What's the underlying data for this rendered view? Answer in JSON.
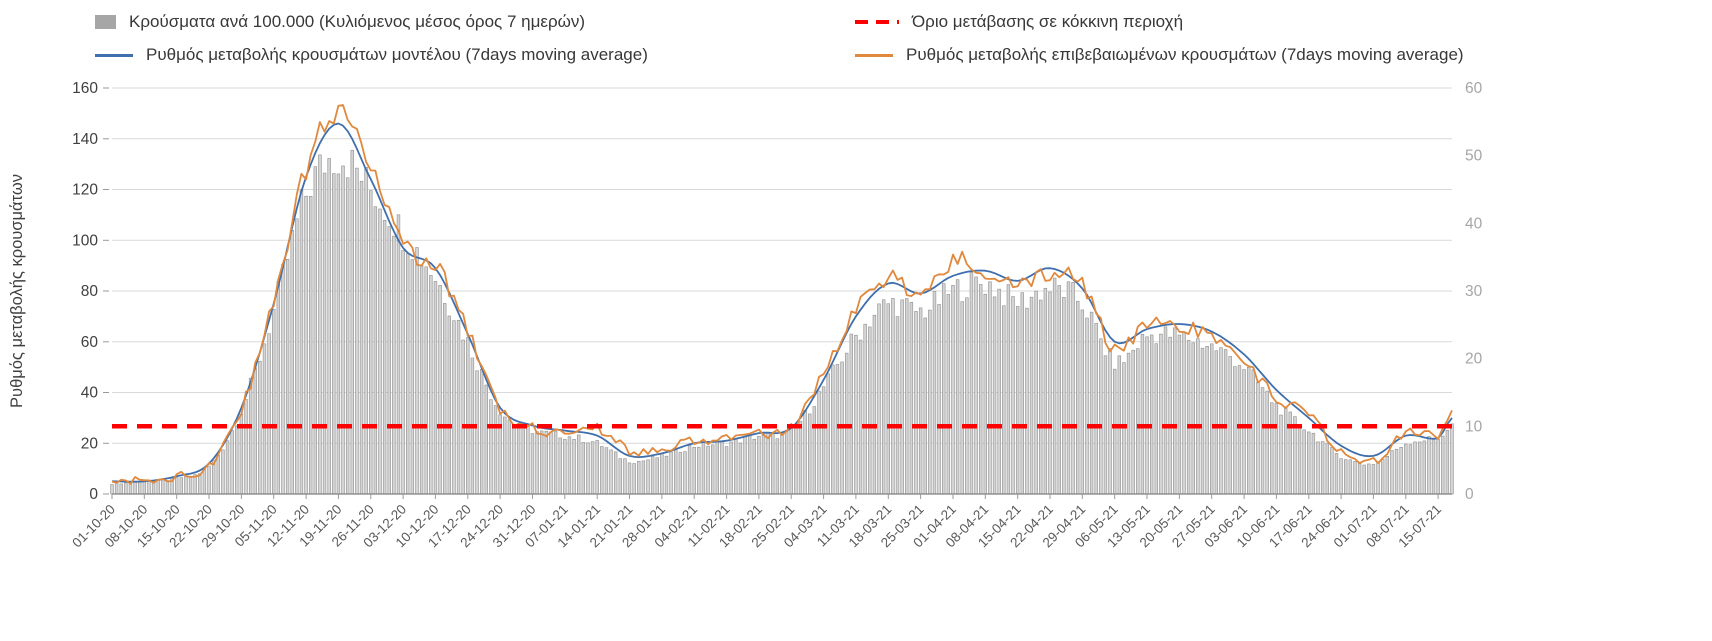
{
  "legend": {
    "items": [
      {
        "label": "Κρούσματα ανά 100.000 (Κυλιόμενος μέσος όρος 7 ημερών)",
        "swatch": "bar",
        "color": "#a6a6a6"
      },
      {
        "label": "Όριο μετάβασης σε κόκκινη περιοχή",
        "swatch": "dash",
        "color": "#ff0000"
      },
      {
        "label": "Ρυθμός μεταβολής κρουσμάτων μοντέλου (7days moving average)",
        "swatch": "line",
        "color": "#3f6fad"
      },
      {
        "label": "Ρυθμός μεταβολής επιβεβαιωμένων κρουσμάτων (7days moving average)",
        "swatch": "line",
        "color": "#e0883c"
      }
    ]
  },
  "chart_data": {
    "type": "bar+line",
    "title": "",
    "ylabel_left": "Ρυθμός μεταβολής κρουσμάτων",
    "axis_left": {
      "min": 0,
      "max": 160,
      "step": 20,
      "tick_labels": [
        "0",
        "20",
        "40",
        "60",
        "80",
        "100",
        "120",
        "140",
        "160"
      ]
    },
    "axis_right": {
      "min": 0,
      "max": 60,
      "step": 10,
      "tick_labels": [
        "0",
        "10",
        "20",
        "30",
        "40",
        "50",
        "60"
      ]
    },
    "grid": "horizontal",
    "legend_position": "top",
    "days_total": 291,
    "x_tick_labels": [
      "01-10-20",
      "08-10-20",
      "15-10-20",
      "22-10-20",
      "29-10-20",
      "05-11-20",
      "12-11-20",
      "19-11-20",
      "26-11-20",
      "03-12-20",
      "10-12-20",
      "17-12-20",
      "24-12-20",
      "31-12-20",
      "07-01-21",
      "14-01-21",
      "21-01-21",
      "28-01-21",
      "04-02-21",
      "11-02-21",
      "18-02-21",
      "25-02-21",
      "04-03-21",
      "11-03-21",
      "18-03-21",
      "25-03-21",
      "01-04-21",
      "08-04-21",
      "15-04-21",
      "22-04-21",
      "29-04-21",
      "06-05-21",
      "13-05-21",
      "20-05-21",
      "27-05-21",
      "03-06-21",
      "10-06-21",
      "17-06-21",
      "24-06-21",
      "01-07-21",
      "08-07-21",
      "15-07-21"
    ],
    "anchor_days": [
      0,
      7,
      14,
      21,
      28,
      35,
      42,
      49,
      56,
      63,
      70,
      77,
      84,
      91,
      98,
      105,
      112,
      119,
      126,
      133,
      140,
      147,
      154,
      161,
      168,
      175,
      182,
      189,
      196,
      203,
      210,
      217,
      224,
      231,
      238,
      245,
      252,
      259,
      266,
      273,
      280,
      287,
      290
    ],
    "series": [
      {
        "name": "Κρούσματα ανά 100.000 (Κυλιόμενος μέσος όρος 7 ημερών)",
        "type": "bar",
        "axis": "right",
        "color": "#d4d4d4",
        "jagged": true,
        "values": [
          1.5,
          1.9,
          2.3,
          4.1,
          12.4,
          27,
          44.3,
          50,
          45,
          38.6,
          32,
          22.5,
          12.4,
          9.4,
          8.6,
          7.5,
          4.9,
          5.6,
          7.1,
          7.5,
          8.6,
          9.4,
          15.8,
          23.3,
          28.1,
          27,
          30,
          31.1,
          28.5,
          30.4,
          28.1,
          19.5,
          23.3,
          23.3,
          21.8,
          18.8,
          13.1,
          9.4,
          5.6,
          4.5,
          7.5,
          8.3,
          10.1
        ]
      },
      {
        "name": "Ρυθμός μεταβολής κρουσμάτων μοντέλου (7days moving average)",
        "type": "line",
        "axis": "left",
        "color": "#3f6fad",
        "jagged": false,
        "values": [
          5,
          5,
          7,
          12,
          34,
          75,
          125,
          146,
          124,
          97,
          89,
          63,
          34,
          27,
          25,
          23,
          15,
          16,
          20,
          21,
          24,
          26,
          45,
          70,
          83,
          79,
          86,
          88,
          84,
          89,
          81,
          60,
          65,
          67,
          64,
          55,
          41,
          30,
          19,
          15,
          23,
          22,
          30
        ]
      },
      {
        "name": "Ρυθμός μεταβολής επιβεβαιωμένων κρουσμάτων (7days moving average)",
        "type": "line",
        "axis": "left",
        "color": "#e0883c",
        "jagged": true,
        "values": [
          6,
          5,
          7,
          11,
          33,
          76,
          128,
          150,
          127,
          98,
          90,
          65,
          33,
          26,
          24,
          26,
          17,
          17,
          21,
          22,
          24,
          26,
          47,
          72,
          85,
          80,
          92,
          88,
          82,
          87,
          82,
          57,
          66,
          65,
          63,
          52,
          38,
          33,
          16,
          13,
          24,
          23,
          31
        ]
      }
    ],
    "threshold": {
      "name": "Όριο μετάβασης σε κόκκινη περιοχή",
      "axis": "right",
      "value": 10,
      "color": "#ff0000"
    }
  }
}
